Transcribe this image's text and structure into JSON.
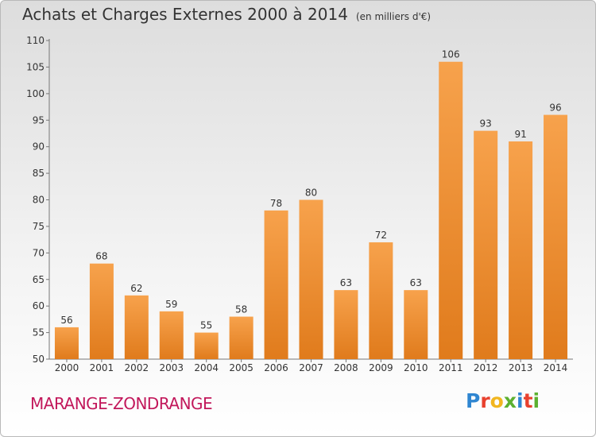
{
  "chart_data": {
    "type": "bar",
    "title": "Achats et Charges Externes 2000 à 2014",
    "unit": "(en milliers d'€)",
    "categories": [
      "2000",
      "2001",
      "2002",
      "2003",
      "2004",
      "2005",
      "2006",
      "2007",
      "2008",
      "2009",
      "2010",
      "2011",
      "2012",
      "2013",
      "2014"
    ],
    "values": [
      56,
      68,
      62,
      59,
      55,
      58,
      78,
      80,
      63,
      72,
      63,
      106,
      93,
      91,
      96
    ],
    "yticks": [
      50,
      55,
      60,
      65,
      70,
      75,
      80,
      85,
      90,
      95,
      100,
      105,
      110
    ],
    "ylim": [
      50,
      110
    ],
    "grid": false,
    "bar_color_light": "#f7a24c",
    "bar_color_dark": "#e07b1c"
  },
  "commune": "MARANGE-ZONDRANGE",
  "logo": {
    "letters": [
      "P",
      "r",
      "o",
      "x",
      "i",
      "t",
      "i"
    ],
    "colors": [
      "#2f86d1",
      "#e8412e",
      "#f1b620",
      "#5cb030",
      "#2f86d1",
      "#e8412e",
      "#5cb030"
    ]
  }
}
